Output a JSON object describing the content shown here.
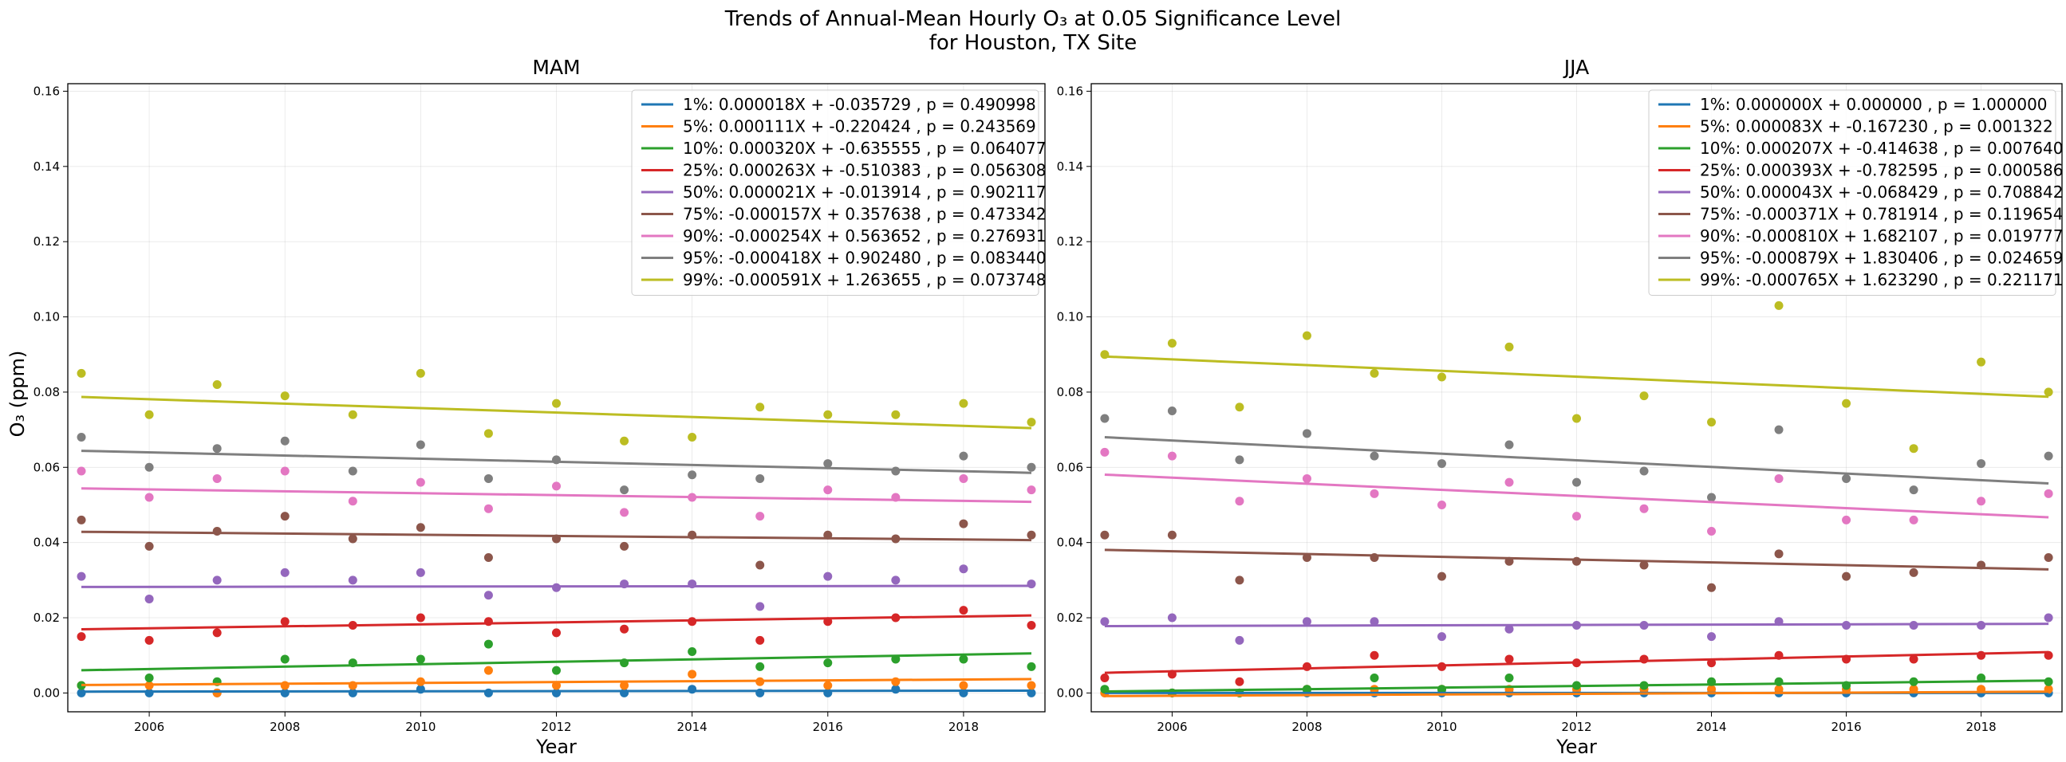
{
  "figure": {
    "suptitle_line1": "Trends of Annual-Mean Hourly O₃ at 0.05 Significance Level",
    "suptitle_line2": "for Houston, TX Site",
    "ylabel": "O₃ (ppm)"
  },
  "colors": [
    "#1f77b4",
    "#ff7f0e",
    "#2ca02c",
    "#d62728",
    "#9467bd",
    "#8c564b",
    "#e377c2",
    "#7f7f7f",
    "#bcbd22"
  ],
  "chart_data": [
    {
      "type": "scatter",
      "title": "MAM",
      "xlabel": "Year",
      "ylabel": "O₃ (ppm)",
      "xlim": [
        2004.8,
        2019.2
      ],
      "ylim": [
        -0.005,
        0.162
      ],
      "xticks": [
        2006,
        2008,
        2010,
        2012,
        2014,
        2016,
        2018
      ],
      "yticks": [
        0.0,
        0.02,
        0.04,
        0.06,
        0.08,
        0.1,
        0.12,
        0.14,
        0.16
      ],
      "grid": true,
      "legend_position": "upper-right",
      "x": [
        2005,
        2006,
        2007,
        2008,
        2009,
        2010,
        2011,
        2012,
        2013,
        2014,
        2015,
        2016,
        2017,
        2018,
        2019
      ],
      "series": [
        {
          "name": "1%: 0.000018X + -0.035729 , p = 0.490998",
          "slope": 1.8e-05,
          "intercept": -0.035729,
          "values": [
            0.0,
            0.0,
            0.0,
            0.0,
            0.0,
            0.001,
            0.0,
            0.0,
            0.0,
            0.001,
            0.0,
            0.0,
            0.001,
            0.0,
            0.0
          ]
        },
        {
          "name": "5%: 0.000111X + -0.220424 , p = 0.243569",
          "slope": 0.000111,
          "intercept": -0.220424,
          "values": [
            0.002,
            0.002,
            0.0,
            0.002,
            0.002,
            0.003,
            0.006,
            0.002,
            0.002,
            0.005,
            0.003,
            0.002,
            0.003,
            0.002,
            0.002
          ]
        },
        {
          "name": "10%: 0.000320X + -0.635555 , p = 0.064077",
          "slope": 0.00032,
          "intercept": -0.635555,
          "values": [
            0.002,
            0.004,
            0.003,
            0.009,
            0.008,
            0.009,
            0.013,
            0.006,
            0.008,
            0.011,
            0.007,
            0.008,
            0.009,
            0.009,
            0.007
          ]
        },
        {
          "name": "25%: 0.000263X + -0.510383 , p = 0.056308",
          "slope": 0.000263,
          "intercept": -0.510383,
          "values": [
            0.015,
            0.014,
            0.016,
            0.019,
            0.018,
            0.02,
            0.019,
            0.016,
            0.017,
            0.019,
            0.014,
            0.019,
            0.02,
            0.022,
            0.018
          ]
        },
        {
          "name": "50%: 0.000021X + -0.013914 , p = 0.902117",
          "slope": 2.1e-05,
          "intercept": -0.013914,
          "values": [
            0.031,
            0.025,
            0.03,
            0.032,
            0.03,
            0.032,
            0.026,
            0.028,
            0.029,
            0.029,
            0.023,
            0.031,
            0.03,
            0.033,
            0.029
          ]
        },
        {
          "name": "75%: -0.000157X + 0.357638 , p = 0.473342",
          "slope": -0.000157,
          "intercept": 0.357638,
          "values": [
            0.046,
            0.039,
            0.043,
            0.047,
            0.041,
            0.044,
            0.036,
            0.041,
            0.039,
            0.042,
            0.034,
            0.042,
            0.041,
            0.045,
            0.042
          ]
        },
        {
          "name": "90%: -0.000254X + 0.563652 , p = 0.276931",
          "slope": -0.000254,
          "intercept": 0.563652,
          "values": [
            0.059,
            0.052,
            0.057,
            0.059,
            0.051,
            0.056,
            0.049,
            0.055,
            0.048,
            0.052,
            0.047,
            0.054,
            0.052,
            0.057,
            0.054
          ]
        },
        {
          "name": "95%: -0.000418X + 0.902480 , p = 0.083440",
          "slope": -0.000418,
          "intercept": 0.90248,
          "values": [
            0.068,
            0.06,
            0.065,
            0.067,
            0.059,
            0.066,
            0.057,
            0.062,
            0.054,
            0.058,
            0.057,
            0.061,
            0.059,
            0.063,
            0.06
          ]
        },
        {
          "name": "99%: -0.000591X + 1.263655 , p = 0.073748",
          "slope": -0.000591,
          "intercept": 1.263655,
          "values": [
            0.085,
            0.074,
            0.082,
            0.079,
            0.074,
            0.085,
            0.069,
            0.077,
            0.067,
            0.068,
            0.076,
            0.074,
            0.074,
            0.077,
            0.072
          ]
        }
      ]
    },
    {
      "type": "scatter",
      "title": "JJA",
      "xlabel": "Year",
      "ylabel": "",
      "xlim": [
        2004.8,
        2019.2
      ],
      "ylim": [
        -0.005,
        0.162
      ],
      "xticks": [
        2006,
        2008,
        2010,
        2012,
        2014,
        2016,
        2018
      ],
      "yticks": [
        0.0,
        0.02,
        0.04,
        0.06,
        0.08,
        0.1,
        0.12,
        0.14,
        0.16
      ],
      "grid": true,
      "legend_position": "upper-right",
      "x": [
        2005,
        2006,
        2007,
        2008,
        2009,
        2010,
        2011,
        2012,
        2013,
        2014,
        2015,
        2016,
        2017,
        2018,
        2019
      ],
      "series": [
        {
          "name": "1%: 0.000000X + 0.000000 , p = 1.000000",
          "slope": 0.0,
          "intercept": 0.0,
          "values": [
            0.0,
            0.0,
            0.0,
            0.0,
            0.0,
            0.0,
            0.0,
            0.0,
            0.0,
            0.0,
            0.0,
            0.0,
            0.0,
            0.0,
            0.0
          ]
        },
        {
          "name": "5%: 0.000083X + -0.167230 , p = 0.001322",
          "slope": 8.3e-05,
          "intercept": -0.16723,
          "values": [
            0.0,
            0.0,
            0.0,
            0.001,
            0.001,
            0.001,
            0.001,
            0.001,
            0.001,
            0.001,
            0.001,
            0.001,
            0.001,
            0.001,
            0.001
          ]
        },
        {
          "name": "10%: 0.000207X + -0.414638 , p = 0.007640",
          "slope": 0.000207,
          "intercept": -0.414638,
          "values": [
            0.001,
            0.0,
            0.0,
            0.001,
            0.004,
            0.001,
            0.004,
            0.002,
            0.002,
            0.003,
            0.003,
            0.002,
            0.003,
            0.004,
            0.003
          ]
        },
        {
          "name": "25%: 0.000393X + -0.782595 , p = 0.000586",
          "slope": 0.000393,
          "intercept": -0.782595,
          "values": [
            0.004,
            0.005,
            0.003,
            0.007,
            0.01,
            0.007,
            0.009,
            0.008,
            0.009,
            0.008,
            0.01,
            0.009,
            0.009,
            0.01,
            0.01
          ]
        },
        {
          "name": "50%: 0.000043X + -0.068429 , p = 0.708842",
          "slope": 4.3e-05,
          "intercept": -0.068429,
          "values": [
            0.019,
            0.02,
            0.014,
            0.019,
            0.019,
            0.015,
            0.017,
            0.018,
            0.018,
            0.015,
            0.019,
            0.018,
            0.018,
            0.018,
            0.02
          ]
        },
        {
          "name": "75%: -0.000371X + 0.781914 , p = 0.119654",
          "slope": -0.000371,
          "intercept": 0.781914,
          "values": [
            0.042,
            0.042,
            0.03,
            0.036,
            0.036,
            0.031,
            0.035,
            0.035,
            0.034,
            0.028,
            0.037,
            0.031,
            0.032,
            0.034,
            0.036
          ]
        },
        {
          "name": "90%: -0.000810X + 1.682107 , p = 0.019777",
          "slope": -0.00081,
          "intercept": 1.682107,
          "values": [
            0.064,
            0.063,
            0.051,
            0.057,
            0.053,
            0.05,
            0.056,
            0.047,
            0.049,
            0.043,
            0.057,
            0.046,
            0.046,
            0.051,
            0.053
          ]
        },
        {
          "name": "95%: -0.000879X + 1.830406 , p = 0.024659",
          "slope": -0.000879,
          "intercept": 1.830406,
          "values": [
            0.073,
            0.075,
            0.062,
            0.069,
            0.063,
            0.061,
            0.066,
            0.056,
            0.059,
            0.052,
            0.07,
            0.057,
            0.054,
            0.061,
            0.063
          ]
        },
        {
          "name": "99%: -0.000765X + 1.623290 , p = 0.221171",
          "slope": -0.000765,
          "intercept": 1.62329,
          "values": [
            0.09,
            0.093,
            0.076,
            0.095,
            0.085,
            0.084,
            0.092,
            0.073,
            0.079,
            0.072,
            0.103,
            0.077,
            0.065,
            0.088,
            0.08
          ]
        }
      ]
    }
  ]
}
